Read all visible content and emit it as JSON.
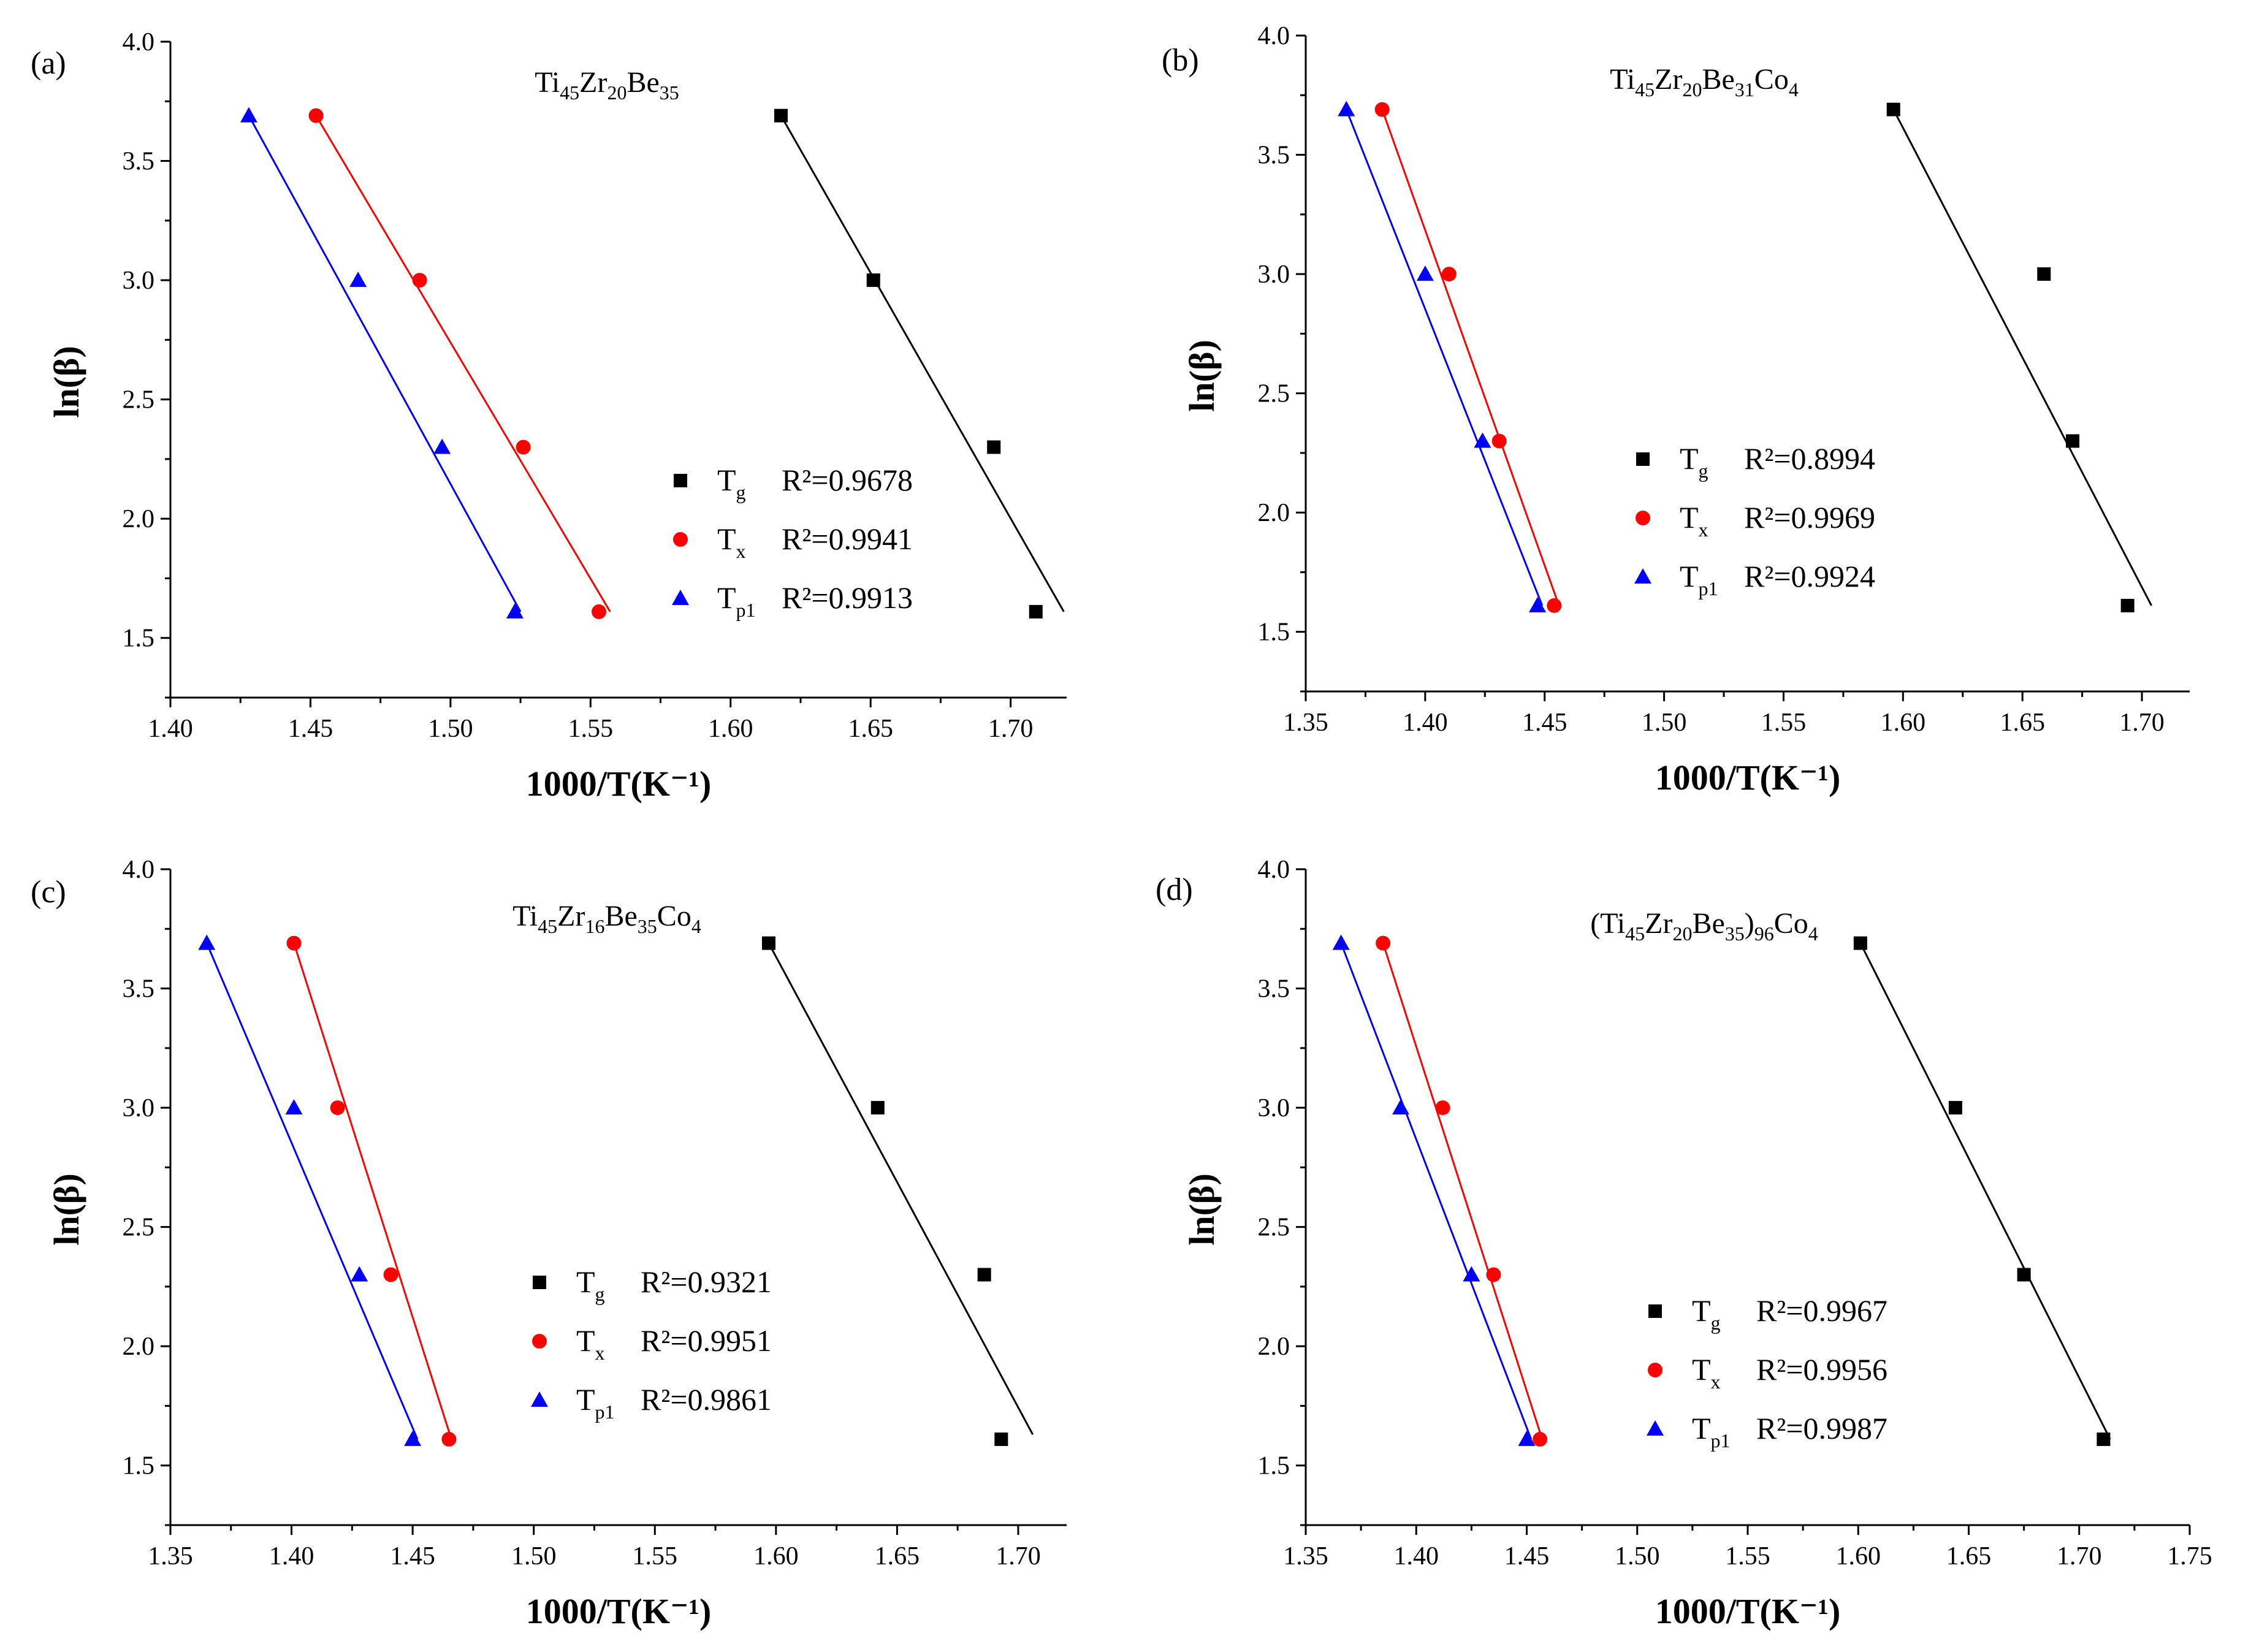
{
  "chart_data": [
    {
      "type": "scatter",
      "panel": "(a)",
      "title": "Ti45Zr20Be35",
      "title_parts": [
        {
          "t": "Ti"
        },
        {
          "t": "45",
          "sub": true
        },
        {
          "t": "Zr"
        },
        {
          "t": "20",
          "sub": true
        },
        {
          "t": "Be"
        },
        {
          "t": "35",
          "sub": true
        }
      ],
      "xlabel": "1000/T(K⁻¹)",
      "ylabel": "ln(β)",
      "xlim": [
        1.4,
        1.72
      ],
      "ylim": [
        1.25,
        4.0
      ],
      "xticks": [
        1.4,
        1.45,
        1.5,
        1.55,
        1.6,
        1.65,
        1.7
      ],
      "yticks": [
        1.5,
        2.0,
        2.5,
        3.0,
        3.5,
        4.0
      ],
      "legend_position": "center-right",
      "series": [
        {
          "name": "Tg",
          "sub": "g",
          "marker": "square",
          "color": "#000000",
          "r2": "R²=0.9678",
          "x": [
            1.618,
            1.651,
            1.694,
            1.709
          ],
          "y": [
            3.69,
            3.0,
            2.3,
            1.61
          ],
          "fit": [
            [
              1.618,
              3.69
            ],
            [
              1.719,
              1.61
            ]
          ]
        },
        {
          "name": "Tx",
          "sub": "x",
          "marker": "circle",
          "color": "#ff0000",
          "r2": "R²=0.9941",
          "x": [
            1.452,
            1.489,
            1.526,
            1.553
          ],
          "y": [
            3.69,
            3.0,
            2.3,
            1.61
          ],
          "fit": [
            [
              1.452,
              3.69
            ],
            [
              1.557,
              1.61
            ]
          ]
        },
        {
          "name": "Tp1",
          "sub": "p1",
          "marker": "triangle",
          "color": "#0000ff",
          "r2": "R²=0.9913",
          "x": [
            1.428,
            1.467,
            1.497,
            1.523
          ],
          "y": [
            3.69,
            3.0,
            2.3,
            1.61
          ],
          "fit": [
            [
              1.428,
              3.69
            ],
            [
              1.525,
              1.61
            ]
          ]
        }
      ]
    },
    {
      "type": "scatter",
      "panel": "(b)",
      "title": "Ti45Zr20Be31Co4",
      "title_parts": [
        {
          "t": "Ti"
        },
        {
          "t": "45",
          "sub": true
        },
        {
          "t": "Zr"
        },
        {
          "t": "20",
          "sub": true
        },
        {
          "t": "Be"
        },
        {
          "t": "31",
          "sub": true
        },
        {
          "t": "Co"
        },
        {
          "t": "4",
          "sub": true
        }
      ],
      "xlabel": "1000/T(K⁻¹)",
      "ylabel": "ln(β)",
      "xlim": [
        1.35,
        1.72
      ],
      "ylim": [
        1.25,
        4.0
      ],
      "xticks": [
        1.35,
        1.4,
        1.45,
        1.5,
        1.55,
        1.6,
        1.65,
        1.7
      ],
      "yticks": [
        1.5,
        2.0,
        2.5,
        3.0,
        3.5,
        4.0
      ],
      "legend_position": "center-right",
      "series": [
        {
          "name": "Tg",
          "sub": "g",
          "marker": "square",
          "color": "#000000",
          "r2": "R²=0.8994",
          "x": [
            1.596,
            1.659,
            1.671,
            1.694
          ],
          "y": [
            3.69,
            3.0,
            2.3,
            1.61
          ],
          "fit": [
            [
              1.596,
              3.69
            ],
            [
              1.704,
              1.61
            ]
          ]
        },
        {
          "name": "Tx",
          "sub": "x",
          "marker": "circle",
          "color": "#ff0000",
          "r2": "R²=0.9969",
          "x": [
            1.382,
            1.41,
            1.431,
            1.454
          ],
          "y": [
            3.69,
            3.0,
            2.3,
            1.61
          ],
          "fit": [
            [
              1.382,
              3.69
            ],
            [
              1.456,
              1.61
            ]
          ]
        },
        {
          "name": "Tp1",
          "sub": "p1",
          "marker": "triangle",
          "color": "#0000ff",
          "r2": "R²=0.9924",
          "x": [
            1.367,
            1.4,
            1.424,
            1.447
          ],
          "y": [
            3.69,
            3.0,
            2.3,
            1.61
          ],
          "fit": [
            [
              1.367,
              3.69
            ],
            [
              1.449,
              1.61
            ]
          ]
        }
      ]
    },
    {
      "type": "scatter",
      "panel": "(c)",
      "title": "Ti45Zr16Be35Co4",
      "title_parts": [
        {
          "t": "Ti"
        },
        {
          "t": "45",
          "sub": true
        },
        {
          "t": "Zr"
        },
        {
          "t": "16",
          "sub": true
        },
        {
          "t": "Be"
        },
        {
          "t": "35",
          "sub": true
        },
        {
          "t": "Co"
        },
        {
          "t": "4",
          "sub": true
        }
      ],
      "xlabel": "1000/T(K⁻¹)",
      "ylabel": "ln(β)",
      "xlim": [
        1.35,
        1.72
      ],
      "ylim": [
        1.25,
        4.0
      ],
      "xticks": [
        1.35,
        1.4,
        1.45,
        1.5,
        1.55,
        1.6,
        1.65,
        1.7
      ],
      "yticks": [
        1.5,
        2.0,
        2.5,
        3.0,
        3.5,
        4.0
      ],
      "legend_position": "center",
      "series": [
        {
          "name": "Tg",
          "sub": "g",
          "marker": "square",
          "color": "#000000",
          "r2": "R²=0.9321",
          "x": [
            1.597,
            1.642,
            1.686,
            1.693
          ],
          "y": [
            3.69,
            3.0,
            2.3,
            1.61
          ],
          "fit": [
            [
              1.597,
              3.69
            ],
            [
              1.706,
              1.63
            ]
          ]
        },
        {
          "name": "Tx",
          "sub": "x",
          "marker": "circle",
          "color": "#ff0000",
          "r2": "R²=0.9951",
          "x": [
            1.401,
            1.419,
            1.441,
            1.465
          ],
          "y": [
            3.69,
            3.0,
            2.3,
            1.61
          ],
          "fit": [
            [
              1.401,
              3.69
            ],
            [
              1.466,
              1.61
            ]
          ]
        },
        {
          "name": "Tp1",
          "sub": "p1",
          "marker": "triangle",
          "color": "#0000ff",
          "r2": "R²=0.9861",
          "x": [
            1.365,
            1.401,
            1.428,
            1.45
          ],
          "y": [
            3.69,
            3.0,
            2.3,
            1.61
          ],
          "fit": [
            [
              1.365,
              3.69
            ],
            [
              1.452,
              1.61
            ]
          ]
        }
      ]
    },
    {
      "type": "scatter",
      "panel": "(d)",
      "title": "(Ti45Zr20Be35)96Co4",
      "title_parts": [
        {
          "t": "(Ti"
        },
        {
          "t": "45",
          "sub": true
        },
        {
          "t": "Zr"
        },
        {
          "t": "20",
          "sub": true
        },
        {
          "t": "Be"
        },
        {
          "t": "35",
          "sub": true
        },
        {
          "t": ")"
        },
        {
          "t": "96",
          "sub": true
        },
        {
          "t": "Co"
        },
        {
          "t": "4",
          "sub": true
        }
      ],
      "xlabel": "1000/T(K⁻¹)",
      "ylabel": "ln(β)",
      "xlim": [
        1.35,
        1.75
      ],
      "ylim": [
        1.25,
        4.0
      ],
      "xticks": [
        1.35,
        1.4,
        1.45,
        1.5,
        1.55,
        1.6,
        1.65,
        1.7,
        1.75
      ],
      "yticks": [
        1.5,
        2.0,
        2.5,
        3.0,
        3.5,
        4.0
      ],
      "legend_position": "center",
      "series": [
        {
          "name": "Tg",
          "sub": "g",
          "marker": "square",
          "color": "#000000",
          "r2": "R²=0.9967",
          "x": [
            1.601,
            1.644,
            1.675,
            1.711
          ],
          "y": [
            3.69,
            3.0,
            2.3,
            1.61
          ],
          "fit": [
            [
              1.601,
              3.69
            ],
            [
              1.714,
              1.61
            ]
          ]
        },
        {
          "name": "Tx",
          "sub": "x",
          "marker": "circle",
          "color": "#ff0000",
          "r2": "R²=0.9956",
          "x": [
            1.385,
            1.412,
            1.435,
            1.456
          ],
          "y": [
            3.69,
            3.0,
            2.3,
            1.61
          ],
          "fit": [
            [
              1.385,
              3.69
            ],
            [
              1.457,
              1.61
            ]
          ]
        },
        {
          "name": "Tp1",
          "sub": "p1",
          "marker": "triangle",
          "color": "#0000ff",
          "r2": "R²=0.9987",
          "x": [
            1.366,
            1.393,
            1.425,
            1.45
          ],
          "y": [
            3.69,
            3.0,
            2.3,
            1.61
          ],
          "fit": [
            [
              1.366,
              3.69
            ],
            [
              1.452,
              1.61
            ]
          ]
        }
      ]
    }
  ]
}
